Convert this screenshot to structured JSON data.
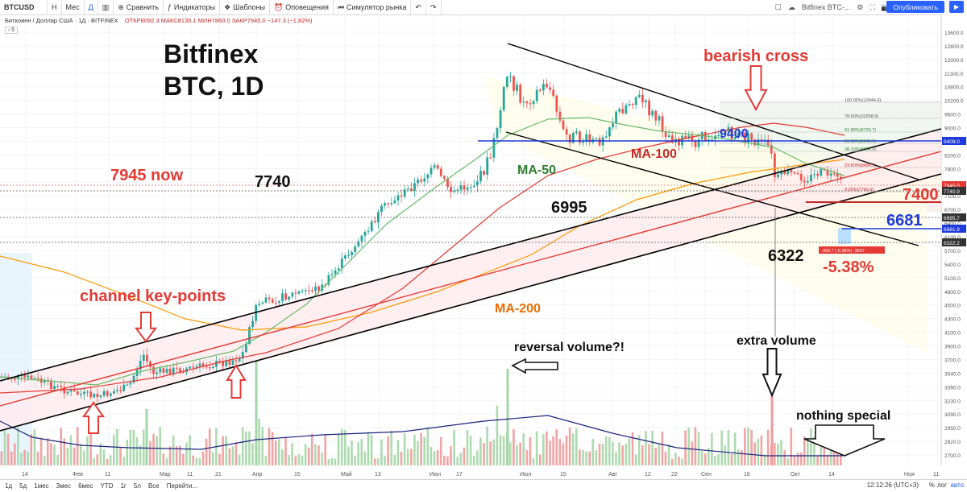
{
  "toolbar": {
    "symbol": "BTCUSD",
    "intervals": [
      "Н",
      "Мес",
      "Д"
    ],
    "compare": "Сравнить",
    "indicators": "Индикаторы",
    "templates": "Шаблоны",
    "alerts": "Оповещения",
    "simulator": "Симулятор рынка",
    "right_title": "Bitfinex BTC-...",
    "publish": "Опубликовать"
  },
  "legend": {
    "symbol": "Биткоинн / Доллар США · 1Д · BITFINEX",
    "values": "ОТКР8092.3  МАКС8135.1  МИН7860.0  ЗАКР7945.0  −147.3 (−1.82%)",
    "ind_count": "6"
  },
  "chart": {
    "title_line1": "Bitfinex",
    "title_line2": "BTC, 1D",
    "price_labels": [
      "13600.0",
      "12800.0",
      "12000.0",
      "11300.0",
      "10800.0",
      "10200.0",
      "9600.0",
      "9000.0",
      "8600.0",
      "8200.0",
      "7800.0",
      "7400.0",
      "7100.0",
      "6700.0",
      "6400.0",
      "6100.0",
      "5700.0",
      "5400.0",
      "5100.0",
      "4800.0",
      "4500.0",
      "4300.0",
      "4100.0",
      "3900.0",
      "3700.0",
      "3540.0",
      "3390.0",
      "3230.0",
      "3090.0",
      "2950.0",
      "2820.0",
      "2700.0"
    ],
    "month_labels": [
      "14",
      "Фев",
      "11",
      "Мар",
      "11",
      "21",
      "Апр",
      "15",
      "Май",
      "13",
      "Июн",
      "17",
      "Июл",
      "15",
      "Авг",
      "12",
      "22",
      "Сен",
      "16",
      "Окт",
      "14",
      "Ноя",
      "11"
    ],
    "axis_tags": [
      "9409.0",
      "7945.0",
      "7740.9",
      "6995.7",
      "6681.9",
      "6322.2"
    ],
    "annotations": {
      "bearish_cross": "bearish cross",
      "now": "7945 now",
      "p7740": "7740",
      "p6995": "6995",
      "p6322": "6322",
      "p9400": "9400",
      "p7400": "7400",
      "p6681": "6681",
      "pct": "-5.38%",
      "ma50": "MA-50",
      "ma100": "MA-100",
      "ma200": "MA-200",
      "channel": "channel key-points",
      "reversal": "reversal volume?!",
      "extra": "extra volume",
      "nothing": "nothing special",
      "measure": "-359.7 (-5.38%) -3597"
    },
    "fib": [
      "100.00%(10944.6)",
      "78.60%(10258.9)",
      "61.80%(9720.7)",
      "50.00%(9342.9)",
      "38.20%(8964.5)",
      "23.60%(8496.5)",
      "0.00%(7740.0)"
    ]
  },
  "statusbar": {
    "ranges": [
      "1д",
      "5д",
      "1мес",
      "3мес",
      "6мес",
      "YTD",
      "1г",
      "5л",
      "Все",
      "Перейти..."
    ],
    "time": "12:12:26 (UTC+3)",
    "pct": "%",
    "log": "лог",
    "auto": "авто"
  },
  "colors": {
    "up": "#26a69a",
    "down": "#ef5350",
    "accent": "#2962ff",
    "annot_red": "#e53935"
  }
}
